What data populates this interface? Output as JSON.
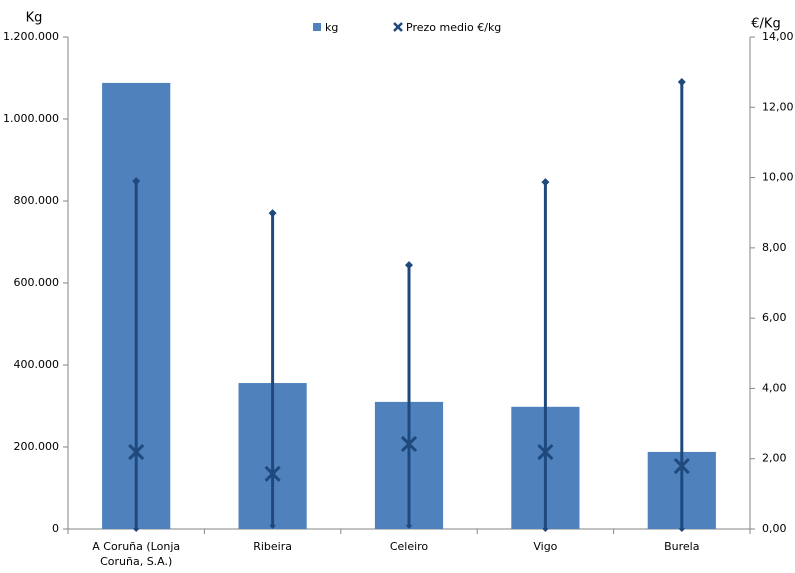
{
  "chart_data": {
    "type": "bar-line",
    "ylabel": "Kg",
    "y2label": "€/Kg",
    "categories": [
      "A Coruña (Lonja Coruña, S.A.)",
      "Ribeira",
      "Celeiro",
      "Vigo",
      "Burela"
    ],
    "series": [
      {
        "name": "kg",
        "type": "bar",
        "color": "#4f81bd",
        "axis": "y",
        "values": [
          1088000,
          356000,
          310000,
          298000,
          188000
        ]
      },
      {
        "name": "Prezo medio €/kg",
        "type": "marker",
        "color": "#1f497d",
        "axis": "y2",
        "values": [
          2.19,
          1.57,
          2.42,
          2.19,
          1.79
        ]
      }
    ],
    "price_range": {
      "color": "#1f497d",
      "low": [
        0,
        0.09,
        0.09,
        0,
        0
      ],
      "high": [
        9.9,
        8.99,
        7.51,
        9.87,
        12.72
      ]
    },
    "ylim": [
      0,
      1200000
    ],
    "yticks": [
      0,
      {
        "value": 200000,
        "label": "200.000"
      },
      {
        "value": 400000,
        "label": "400.000"
      },
      {
        "value": 600000,
        "label": "600.000"
      },
      {
        "value": 800000,
        "label": "800.000"
      },
      {
        "value": 1000000,
        "label": "1.000.000"
      },
      {
        "value": 1200000,
        "label": "1.200.000"
      }
    ],
    "y2lim": [
      0,
      14
    ],
    "y2ticks": [
      {
        "value": 0,
        "label": "0,00"
      },
      {
        "value": 2,
        "label": "2,00"
      },
      {
        "value": 4,
        "label": "4,00"
      },
      {
        "value": 6,
        "label": "6,00"
      },
      {
        "value": 8,
        "label": "8,00"
      },
      {
        "value": 10,
        "label": "10,00"
      },
      {
        "value": 12,
        "label": "12,00"
      },
      {
        "value": 14,
        "label": "14,00"
      }
    ],
    "legend": "top"
  }
}
